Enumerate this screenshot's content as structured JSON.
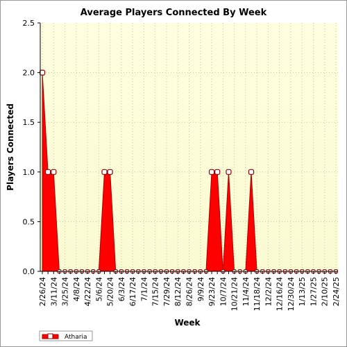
{
  "chart_data": {
    "type": "area",
    "title": "Average Players Connected By Week",
    "xlabel": "Week",
    "ylabel": "Players Connected",
    "ylim": [
      0,
      2.5
    ],
    "yticks": [
      "0.0",
      "0.5",
      "1.0",
      "1.5",
      "2.0",
      "2.5"
    ],
    "grid": true,
    "legend_position": "bottom-left",
    "x_tick_labels": [
      "2/26/24",
      "3/11/24",
      "3/25/24",
      "4/8/24",
      "4/22/24",
      "5/6/24",
      "5/20/24",
      "6/3/24",
      "6/17/24",
      "7/1/24",
      "7/15/24",
      "7/29/24",
      "8/12/24",
      "8/26/24",
      "9/9/24",
      "9/23/24",
      "10/7/24",
      "10/21/24",
      "11/4/24",
      "11/18/24",
      "12/2/24",
      "12/16/24",
      "12/30/24",
      "1/13/25",
      "1/27/25",
      "2/10/25",
      "2/24/25"
    ],
    "x": [
      "2/26/24",
      "3/4/24",
      "3/11/24",
      "3/18/24",
      "3/25/24",
      "4/1/24",
      "4/8/24",
      "4/15/24",
      "4/22/24",
      "4/29/24",
      "5/6/24",
      "5/13/24",
      "5/20/24",
      "5/27/24",
      "6/3/24",
      "6/10/24",
      "6/17/24",
      "6/24/24",
      "7/1/24",
      "7/8/24",
      "7/15/24",
      "7/22/24",
      "7/29/24",
      "8/5/24",
      "8/12/24",
      "8/19/24",
      "8/26/24",
      "9/2/24",
      "9/9/24",
      "9/16/24",
      "9/23/24",
      "9/30/24",
      "10/7/24",
      "10/14/24",
      "10/21/24",
      "10/28/24",
      "11/4/24",
      "11/11/24",
      "11/18/24",
      "11/25/24",
      "12/2/24",
      "12/9/24",
      "12/16/24",
      "12/23/24",
      "12/30/24",
      "1/6/25",
      "1/13/25",
      "1/20/25",
      "1/27/25",
      "2/3/25",
      "2/10/25",
      "2/17/25",
      "2/24/25"
    ],
    "series": [
      {
        "name": "Atharia",
        "color": "#ff0000",
        "values": [
          2,
          1,
          1,
          0,
          0,
          0,
          0,
          0,
          0,
          0,
          0,
          1,
          1,
          0,
          0,
          0,
          0,
          0,
          0,
          0,
          0,
          0,
          0,
          0,
          0,
          0,
          0,
          0,
          0,
          0,
          1,
          1,
          0,
          1,
          0,
          0,
          0,
          1,
          0,
          0,
          0,
          0,
          0,
          0,
          0,
          0,
          0,
          0,
          0,
          0,
          0,
          0,
          0
        ]
      }
    ],
    "colors": {
      "plot_background_top": "#ffffe0",
      "plot_background_bottom": "#fafad2",
      "area_fill": "#ff0000",
      "area_edge": "#b00000",
      "marker_fill": "#ffffff",
      "marker_edge": "#8b0000",
      "grid": "#c8c8a0"
    }
  }
}
